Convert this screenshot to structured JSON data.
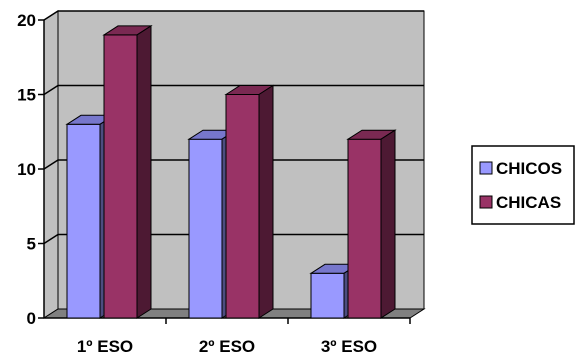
{
  "chart_data": {
    "type": "bar",
    "categories": [
      "1º ESO",
      "2º ESO",
      "3º ESO"
    ],
    "series": [
      {
        "name": "CHICOS",
        "values": [
          13,
          12,
          3
        ],
        "color": "#9999FF",
        "top_color": "#7777CC",
        "side_color": "#4D4D80"
      },
      {
        "name": "CHICAS",
        "values": [
          19,
          15,
          12
        ],
        "color": "#993366",
        "top_color": "#7A2952",
        "side_color": "#4D1933"
      }
    ],
    "ylim": [
      0,
      20
    ],
    "yticks": [
      0,
      5,
      10,
      15,
      20
    ],
    "grid": true,
    "legend": "right",
    "wall_color": "#C0C0C0",
    "floor_color": "#808080",
    "title": "",
    "xlabel": "",
    "ylabel": ""
  }
}
